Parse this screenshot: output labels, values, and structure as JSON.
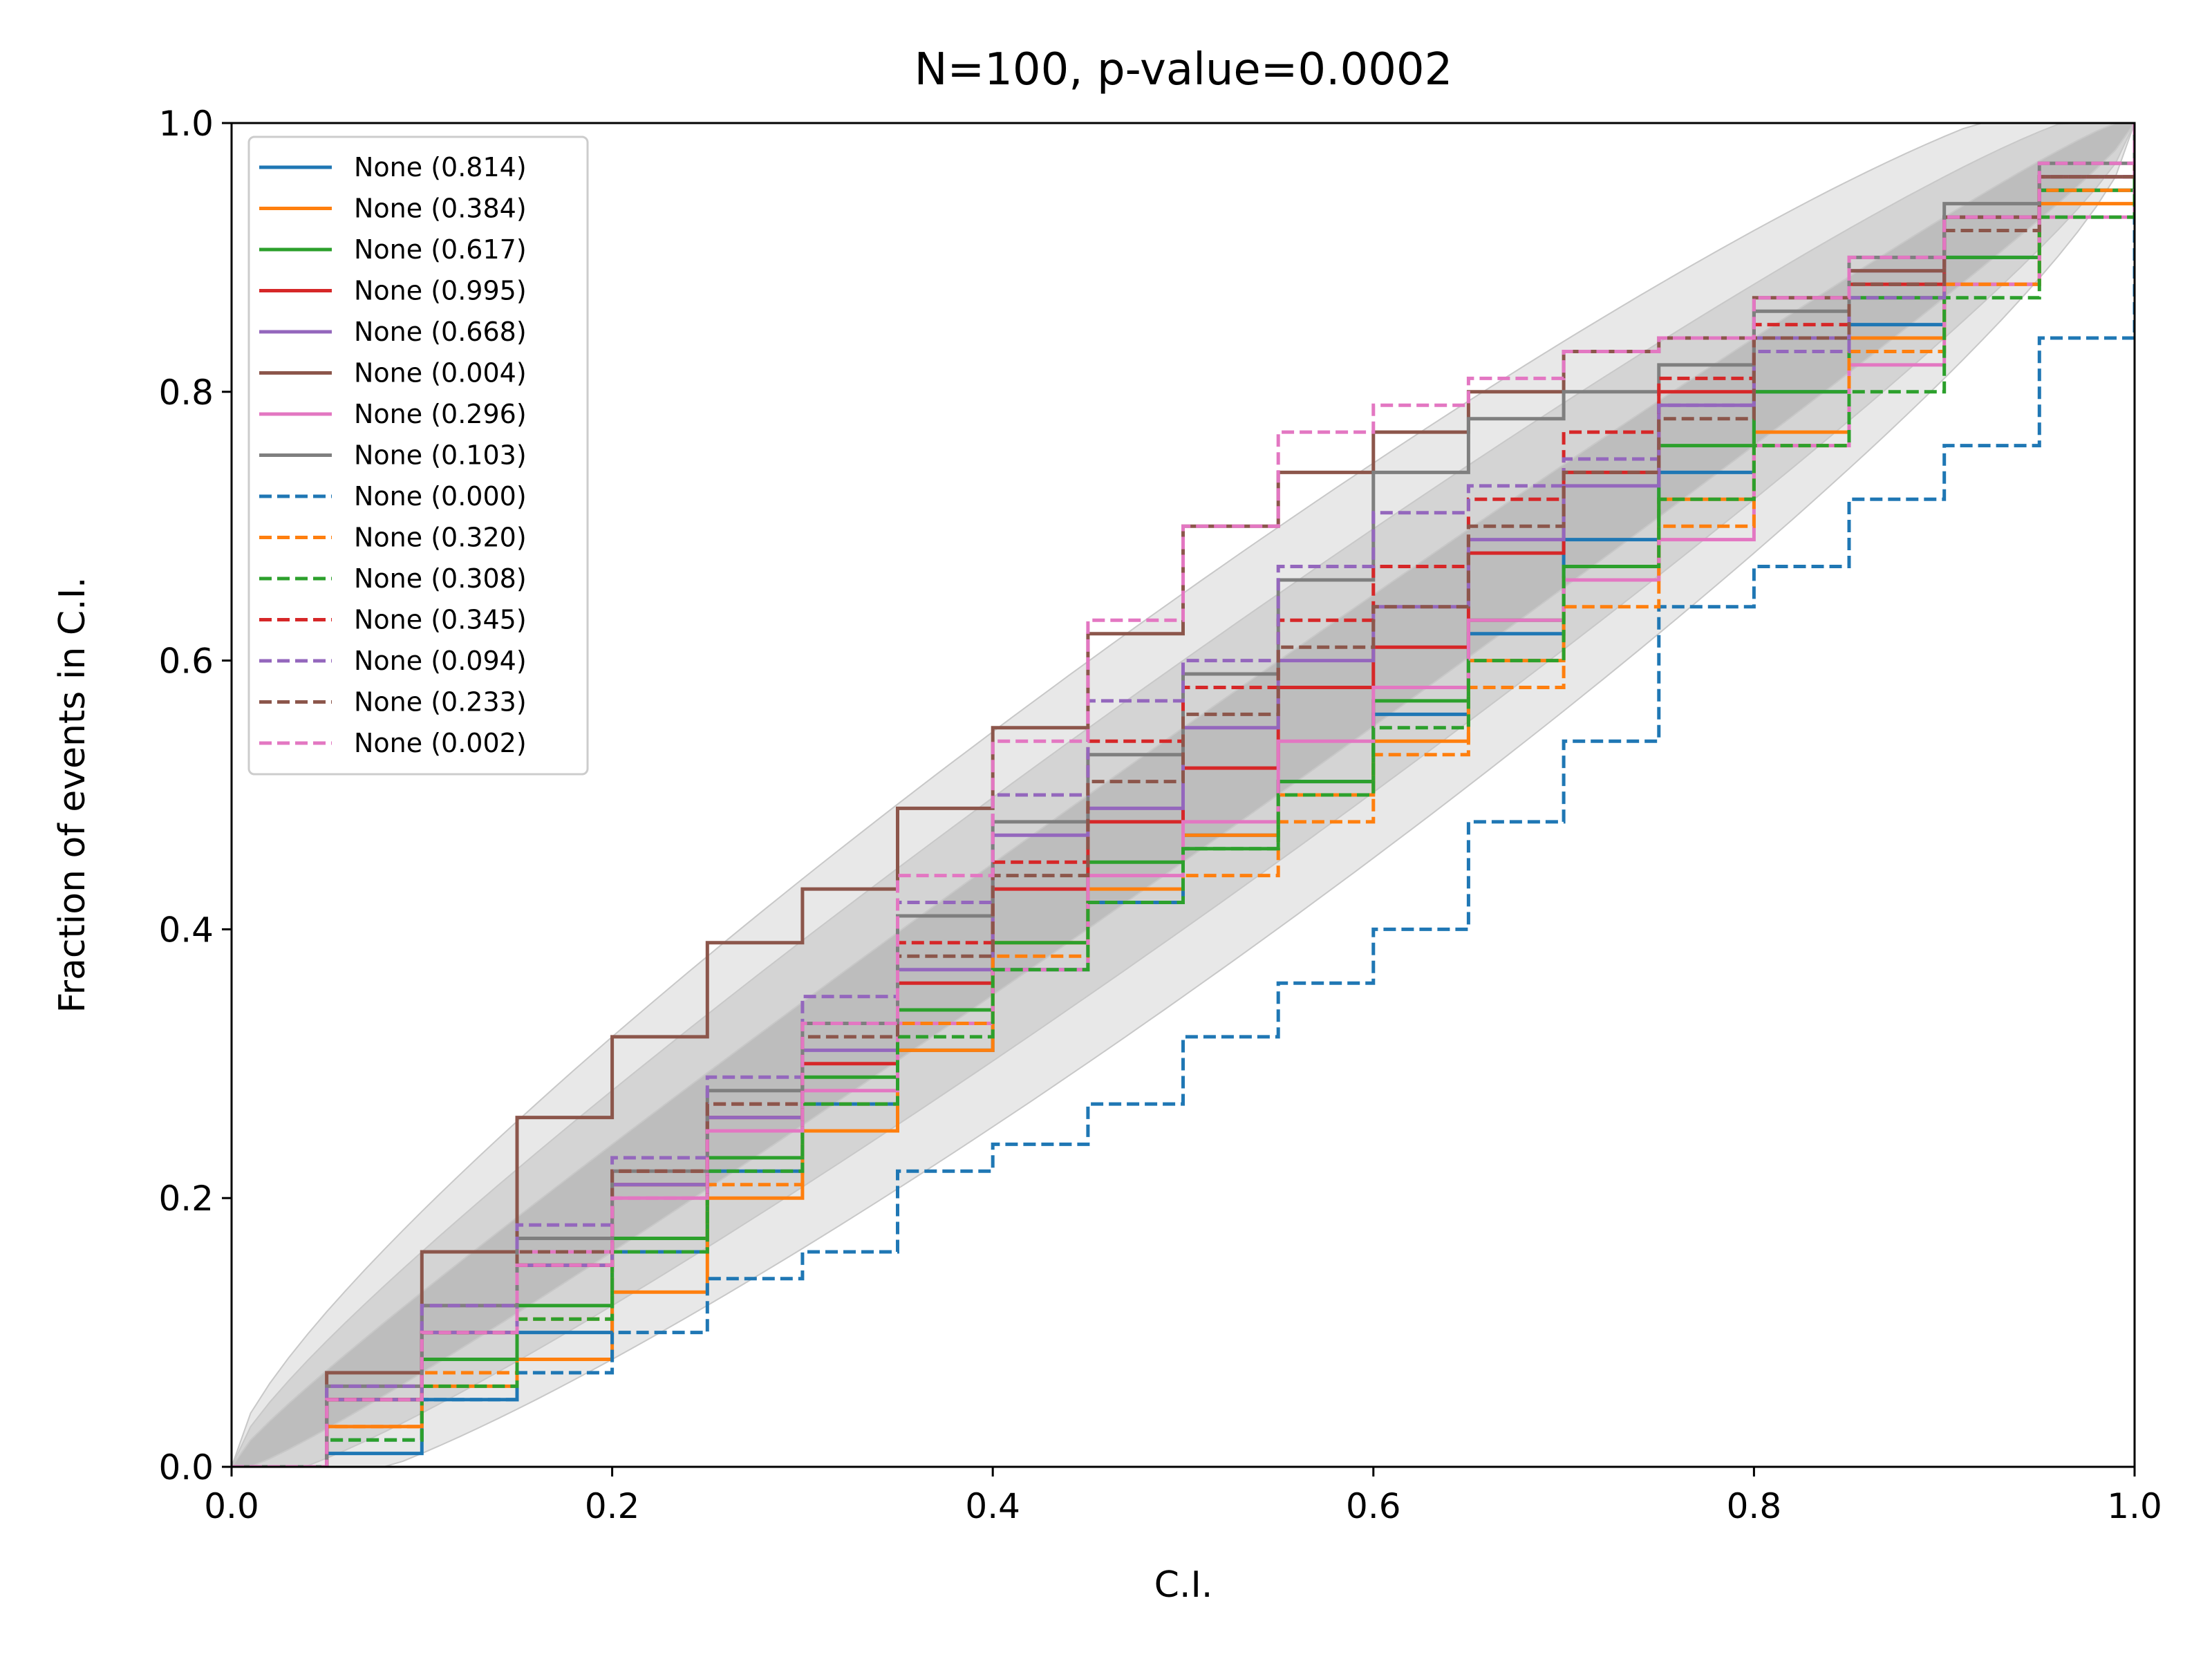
{
  "chart_data": {
    "type": "line",
    "title": "N=100, p-value=0.0002",
    "xlabel": "C.I.",
    "ylabel": "Fraction of events in C.I.",
    "xlim": [
      0,
      1
    ],
    "ylim": [
      0,
      1
    ],
    "x_ticks": [
      "0.0",
      "0.2",
      "0.4",
      "0.6",
      "0.8",
      "1.0"
    ],
    "y_ticks": [
      "0.0",
      "0.2",
      "0.4",
      "0.6",
      "0.8",
      "1.0"
    ],
    "grid": false,
    "legend_position": "upper-left",
    "confidence_bands": [
      {
        "level": "inner",
        "color": "#bdbdbd",
        "half_width_max": 0.05
      },
      {
        "level": "middle",
        "color": "#d4d4d4",
        "half_width_max": 0.1
      },
      {
        "level": "outer",
        "color": "#e8e8e8",
        "half_width_max": 0.15
      }
    ],
    "series": [
      {
        "name": "None (0.814)",
        "color": "#1f77b4",
        "style": "solid",
        "x": [
          0,
          0.05,
          0.1,
          0.15,
          0.2,
          0.25,
          0.3,
          0.35,
          0.4,
          0.45,
          0.5,
          0.55,
          0.6,
          0.65,
          0.7,
          0.75,
          0.8,
          0.85,
          0.9,
          0.95,
          1
        ],
        "y": [
          0,
          0.01,
          0.05,
          0.1,
          0.16,
          0.22,
          0.27,
          0.31,
          0.37,
          0.42,
          0.47,
          0.51,
          0.56,
          0.62,
          0.69,
          0.74,
          0.8,
          0.85,
          0.9,
          0.95,
          1
        ]
      },
      {
        "name": "None (0.384)",
        "color": "#ff7f0e",
        "style": "solid",
        "x": [
          0,
          0.05,
          0.1,
          0.15,
          0.2,
          0.25,
          0.3,
          0.35,
          0.4,
          0.45,
          0.5,
          0.55,
          0.6,
          0.65,
          0.7,
          0.75,
          0.8,
          0.85,
          0.9,
          0.95,
          1
        ],
        "y": [
          0,
          0.03,
          0.06,
          0.08,
          0.13,
          0.2,
          0.25,
          0.31,
          0.39,
          0.43,
          0.47,
          0.5,
          0.54,
          0.6,
          0.66,
          0.72,
          0.77,
          0.84,
          0.88,
          0.94,
          1
        ]
      },
      {
        "name": "None (0.617)",
        "color": "#2ca02c",
        "style": "solid",
        "x": [
          0,
          0.05,
          0.1,
          0.15,
          0.2,
          0.25,
          0.3,
          0.35,
          0.4,
          0.45,
          0.5,
          0.55,
          0.6,
          0.65,
          0.7,
          0.75,
          0.8,
          0.85,
          0.9,
          0.95,
          1
        ],
        "y": [
          0,
          0.05,
          0.08,
          0.12,
          0.17,
          0.23,
          0.29,
          0.34,
          0.39,
          0.45,
          0.46,
          0.51,
          0.57,
          0.63,
          0.67,
          0.76,
          0.8,
          0.87,
          0.9,
          0.95,
          1
        ]
      },
      {
        "name": "None (0.995)",
        "color": "#d62728",
        "style": "solid",
        "x": [
          0,
          0.05,
          0.1,
          0.15,
          0.2,
          0.25,
          0.3,
          0.35,
          0.4,
          0.45,
          0.5,
          0.55,
          0.6,
          0.65,
          0.7,
          0.75,
          0.8,
          0.85,
          0.9,
          0.95,
          1
        ],
        "y": [
          0,
          0.05,
          0.1,
          0.15,
          0.21,
          0.26,
          0.3,
          0.36,
          0.43,
          0.48,
          0.52,
          0.58,
          0.61,
          0.68,
          0.74,
          0.8,
          0.84,
          0.88,
          0.93,
          0.96,
          1
        ]
      },
      {
        "name": "None (0.668)",
        "color": "#9467bd",
        "style": "solid",
        "x": [
          0,
          0.05,
          0.1,
          0.15,
          0.2,
          0.25,
          0.3,
          0.35,
          0.4,
          0.45,
          0.5,
          0.55,
          0.6,
          0.65,
          0.7,
          0.75,
          0.8,
          0.85,
          0.9,
          0.95,
          1
        ],
        "y": [
          0,
          0.05,
          0.1,
          0.15,
          0.21,
          0.26,
          0.31,
          0.37,
          0.47,
          0.49,
          0.55,
          0.6,
          0.64,
          0.69,
          0.73,
          0.79,
          0.84,
          0.89,
          0.93,
          0.96,
          1
        ]
      },
      {
        "name": "None (0.004)",
        "color": "#8c564b",
        "style": "solid",
        "x": [
          0,
          0.05,
          0.1,
          0.15,
          0.2,
          0.25,
          0.3,
          0.35,
          0.4,
          0.45,
          0.5,
          0.55,
          0.6,
          0.65,
          0.7,
          0.75,
          0.8,
          0.85,
          0.9,
          0.95,
          1
        ],
        "y": [
          0,
          0.07,
          0.16,
          0.26,
          0.32,
          0.39,
          0.43,
          0.49,
          0.55,
          0.62,
          0.7,
          0.74,
          0.77,
          0.8,
          0.83,
          0.84,
          0.87,
          0.89,
          0.93,
          0.96,
          1
        ]
      },
      {
        "name": "None (0.296)",
        "color": "#e377c2",
        "style": "solid",
        "x": [
          0,
          0.05,
          0.1,
          0.15,
          0.2,
          0.25,
          0.3,
          0.35,
          0.4,
          0.45,
          0.5,
          0.55,
          0.6,
          0.65,
          0.7,
          0.75,
          0.8,
          0.85,
          0.9,
          0.95,
          1
        ],
        "y": [
          0,
          0.06,
          0.12,
          0.16,
          0.2,
          0.25,
          0.28,
          0.33,
          0.37,
          0.44,
          0.48,
          0.54,
          0.58,
          0.63,
          0.66,
          0.69,
          0.76,
          0.82,
          0.88,
          0.93,
          1
        ]
      },
      {
        "name": "None (0.103)",
        "color": "#7f7f7f",
        "style": "solid",
        "x": [
          0,
          0.05,
          0.1,
          0.15,
          0.2,
          0.25,
          0.3,
          0.35,
          0.4,
          0.45,
          0.5,
          0.55,
          0.6,
          0.65,
          0.7,
          0.75,
          0.8,
          0.85,
          0.9,
          0.95,
          1
        ],
        "y": [
          0,
          0.06,
          0.12,
          0.17,
          0.22,
          0.28,
          0.33,
          0.41,
          0.48,
          0.53,
          0.59,
          0.66,
          0.74,
          0.78,
          0.8,
          0.82,
          0.86,
          0.9,
          0.94,
          0.97,
          1
        ]
      },
      {
        "name": "None (0.000)",
        "color": "#1f77b4",
        "style": "dashed",
        "x": [
          0,
          0.05,
          0.1,
          0.15,
          0.2,
          0.25,
          0.3,
          0.35,
          0.4,
          0.45,
          0.5,
          0.55,
          0.6,
          0.65,
          0.7,
          0.75,
          0.8,
          0.85,
          0.9,
          0.95,
          1
        ],
        "y": [
          0,
          0.02,
          0.05,
          0.07,
          0.1,
          0.14,
          0.16,
          0.22,
          0.24,
          0.27,
          0.32,
          0.36,
          0.4,
          0.48,
          0.54,
          0.64,
          0.67,
          0.72,
          0.76,
          0.84,
          1
        ]
      },
      {
        "name": "None (0.320)",
        "color": "#ff7f0e",
        "style": "dashed",
        "x": [
          0,
          0.05,
          0.1,
          0.15,
          0.2,
          0.25,
          0.3,
          0.35,
          0.4,
          0.45,
          0.5,
          0.55,
          0.6,
          0.65,
          0.7,
          0.75,
          0.8,
          0.85,
          0.9,
          0.95,
          1
        ],
        "y": [
          0,
          0.03,
          0.07,
          0.11,
          0.16,
          0.21,
          0.27,
          0.33,
          0.38,
          0.42,
          0.44,
          0.48,
          0.53,
          0.58,
          0.64,
          0.7,
          0.76,
          0.83,
          0.88,
          0.95,
          1
        ]
      },
      {
        "name": "None (0.308)",
        "color": "#2ca02c",
        "style": "dashed",
        "x": [
          0,
          0.05,
          0.1,
          0.15,
          0.2,
          0.25,
          0.3,
          0.35,
          0.4,
          0.45,
          0.5,
          0.55,
          0.6,
          0.65,
          0.7,
          0.75,
          0.8,
          0.85,
          0.9,
          0.95,
          1
        ],
        "y": [
          0,
          0.02,
          0.06,
          0.11,
          0.16,
          0.22,
          0.27,
          0.32,
          0.37,
          0.42,
          0.46,
          0.5,
          0.55,
          0.6,
          0.67,
          0.72,
          0.76,
          0.8,
          0.87,
          0.93,
          1
        ]
      },
      {
        "name": "None (0.345)",
        "color": "#d62728",
        "style": "dashed",
        "x": [
          0,
          0.05,
          0.1,
          0.15,
          0.2,
          0.25,
          0.3,
          0.35,
          0.4,
          0.45,
          0.5,
          0.55,
          0.6,
          0.65,
          0.7,
          0.75,
          0.8,
          0.85,
          0.9,
          0.95,
          1
        ],
        "y": [
          0,
          0.05,
          0.1,
          0.15,
          0.22,
          0.27,
          0.33,
          0.39,
          0.45,
          0.54,
          0.58,
          0.63,
          0.67,
          0.72,
          0.77,
          0.81,
          0.85,
          0.88,
          0.92,
          0.96,
          1
        ]
      },
      {
        "name": "None (0.094)",
        "color": "#9467bd",
        "style": "dashed",
        "x": [
          0,
          0.05,
          0.1,
          0.15,
          0.2,
          0.25,
          0.3,
          0.35,
          0.4,
          0.45,
          0.5,
          0.55,
          0.6,
          0.65,
          0.7,
          0.75,
          0.8,
          0.85,
          0.9,
          0.95,
          1
        ],
        "y": [
          0,
          0.06,
          0.12,
          0.18,
          0.23,
          0.29,
          0.35,
          0.42,
          0.5,
          0.57,
          0.6,
          0.67,
          0.71,
          0.73,
          0.75,
          0.79,
          0.83,
          0.87,
          0.92,
          0.96,
          1
        ]
      },
      {
        "name": "None (0.233)",
        "color": "#8c564b",
        "style": "dashed",
        "x": [
          0,
          0.05,
          0.1,
          0.15,
          0.2,
          0.25,
          0.3,
          0.35,
          0.4,
          0.45,
          0.5,
          0.55,
          0.6,
          0.65,
          0.7,
          0.75,
          0.8,
          0.85,
          0.9,
          0.95,
          1
        ],
        "y": [
          0,
          0.05,
          0.1,
          0.16,
          0.22,
          0.27,
          0.32,
          0.38,
          0.44,
          0.51,
          0.56,
          0.61,
          0.64,
          0.7,
          0.74,
          0.78,
          0.84,
          0.88,
          0.92,
          0.96,
          1
        ]
      },
      {
        "name": "None (0.002)",
        "color": "#e377c2",
        "style": "dashed",
        "x": [
          0,
          0.05,
          0.1,
          0.15,
          0.2,
          0.25,
          0.3,
          0.35,
          0.4,
          0.45,
          0.5,
          0.55,
          0.6,
          0.65,
          0.7,
          0.75,
          0.8,
          0.85,
          0.9,
          0.95,
          1
        ],
        "y": [
          0,
          0.05,
          0.1,
          0.15,
          0.2,
          0.25,
          0.33,
          0.44,
          0.54,
          0.63,
          0.7,
          0.77,
          0.79,
          0.81,
          0.83,
          0.84,
          0.87,
          0.9,
          0.93,
          0.97,
          1
        ]
      }
    ]
  }
}
